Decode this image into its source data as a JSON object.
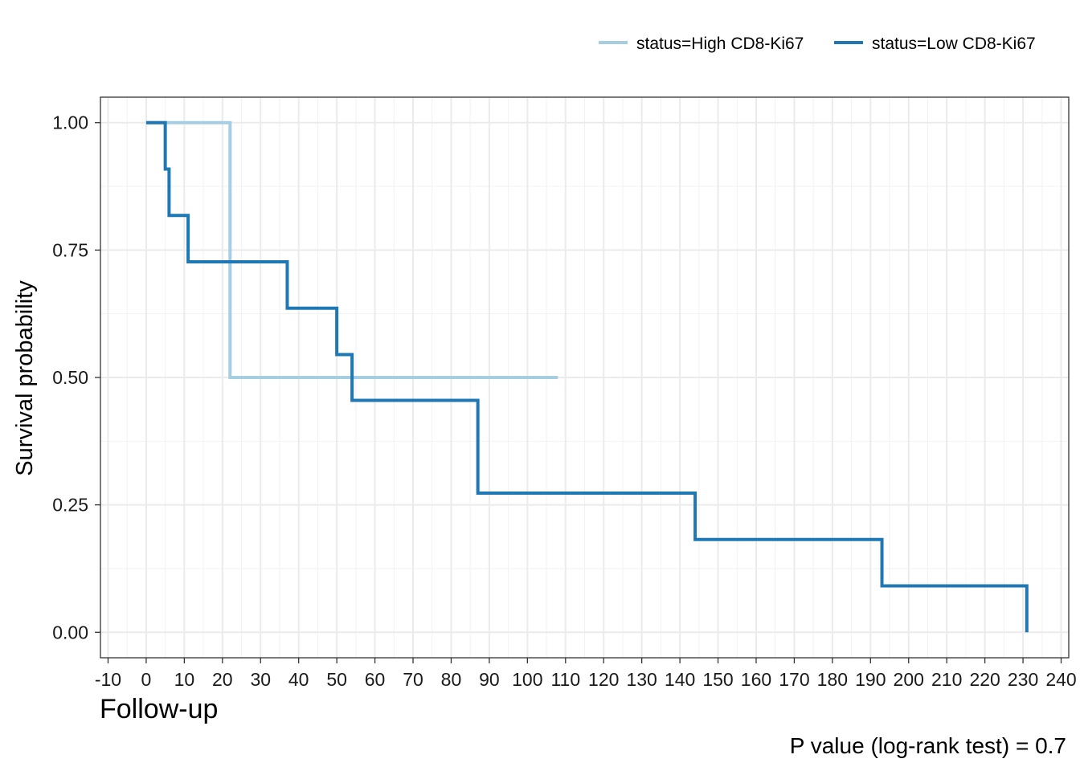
{
  "chart_data": {
    "type": "line",
    "subtype": "kaplan-meier-step",
    "xlabel": "Follow-up",
    "ylabel": "Survival probability",
    "xlim": [
      -12,
      242
    ],
    "ylim": [
      -0.05,
      1.05
    ],
    "x_ticks": [
      -10,
      0,
      10,
      20,
      30,
      40,
      50,
      60,
      70,
      80,
      90,
      100,
      110,
      120,
      130,
      140,
      150,
      160,
      170,
      180,
      190,
      200,
      210,
      220,
      230,
      240
    ],
    "x_tick_labels": [
      "-10",
      "0",
      "10",
      "20",
      "30",
      "40",
      "50",
      "60",
      "70",
      "80",
      "90",
      "100",
      "110",
      "120",
      "130",
      "140",
      "150",
      "160",
      "170",
      "180",
      "190",
      "200",
      "210",
      "220",
      "230",
      "240"
    ],
    "y_ticks": [
      0,
      0.25,
      0.5,
      0.75,
      1
    ],
    "y_tick_labels": [
      "0.00",
      "0.25",
      "0.50",
      "0.75",
      "1.00"
    ],
    "grid": true,
    "legend_position": "top-right",
    "series": [
      {
        "name": "status=High CD8-Ki67",
        "color": "#a6cee3",
        "x": [
          0,
          22,
          108
        ],
        "y": [
          1.0,
          0.5,
          0.5
        ]
      },
      {
        "name": "status=Low CD8-Ki67",
        "color": "#1f78b4",
        "x": [
          0,
          5,
          6,
          11,
          37,
          50,
          54,
          87,
          144,
          193,
          231
        ],
        "y": [
          1.0,
          0.909,
          0.818,
          0.727,
          0.636,
          0.545,
          0.455,
          0.273,
          0.182,
          0.091,
          0.0
        ]
      }
    ],
    "annotation": "P value (log-rank test) = 0.7"
  }
}
